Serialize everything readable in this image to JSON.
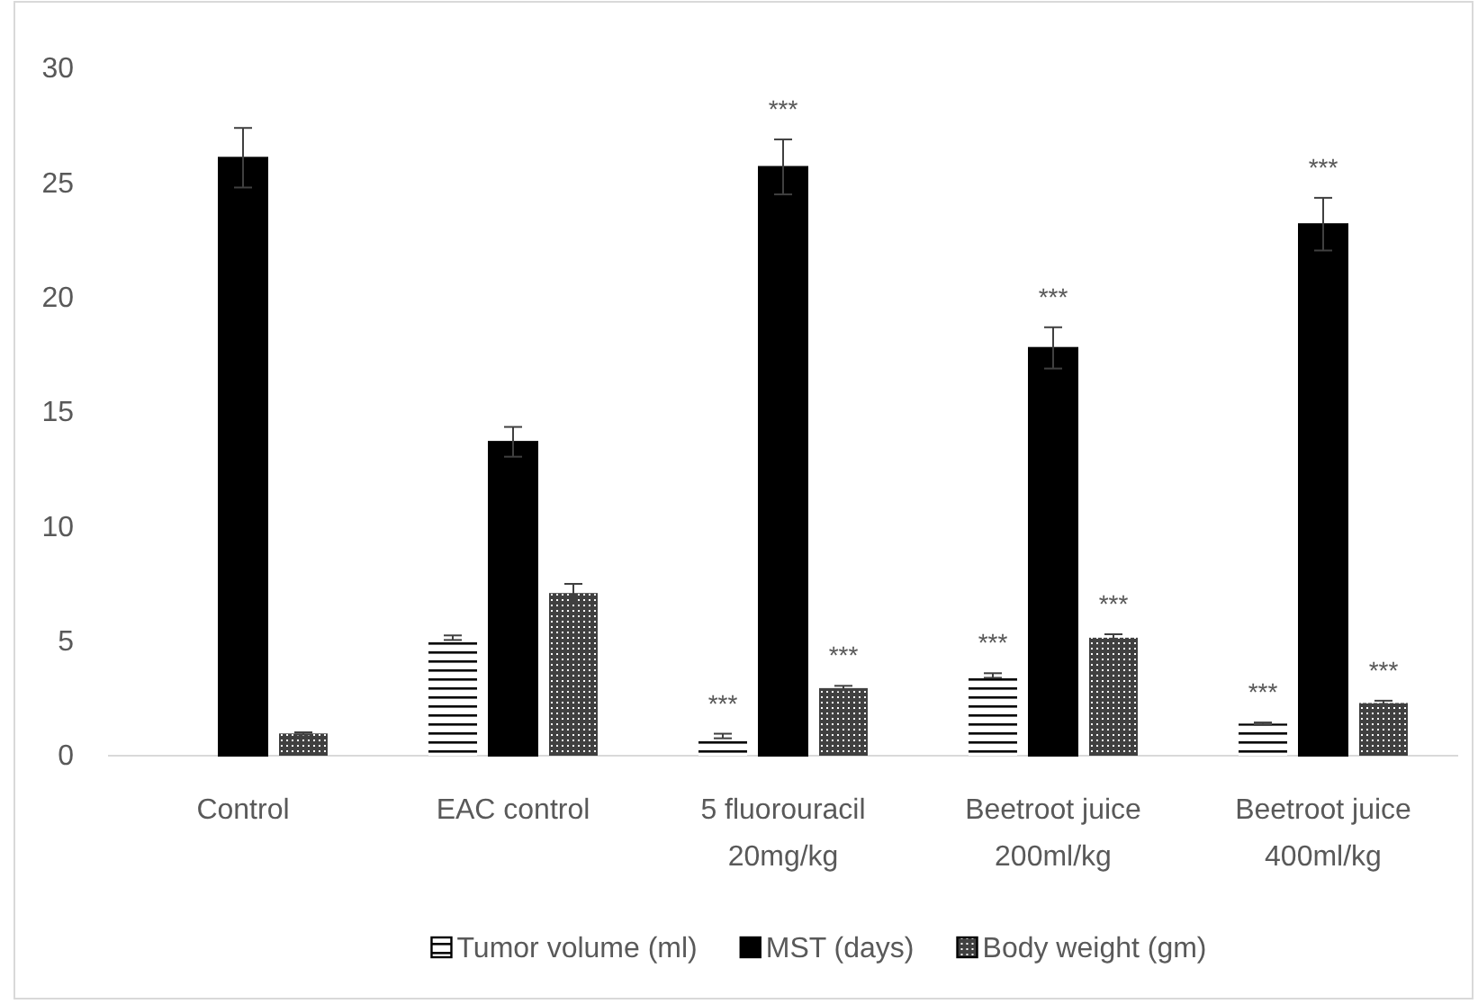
{
  "chart_data": {
    "type": "bar",
    "categories": [
      "Control",
      "EAC control",
      "5 fluorouracil 20mg/kg",
      "Beetroot juice 200ml/kg",
      "Beetroot juice 400ml/kg"
    ],
    "series": [
      {
        "name": "Tumor volume (ml)",
        "color": "#ffffff",
        "values": [
          null,
          5.15,
          0.86,
          3.5,
          1.4
        ],
        "errors": [
          null,
          0.1,
          0.1,
          0.1,
          0.05
        ],
        "value_labels": [
          null,
          null,
          "***",
          "***",
          "***"
        ]
      },
      {
        "name": "MST (days)",
        "color": "#000000",
        "values": [
          26.1,
          13.7,
          25.7,
          17.8,
          23.2
        ],
        "errors": [
          1.3,
          0.65,
          1.2,
          0.9,
          1.15
        ],
        "value_labels": [
          null,
          null,
          "***",
          "***",
          "***"
        ]
      },
      {
        "name": "Body weight (gm)",
        "color": "#404040",
        "values": [
          0.97,
          7.1,
          2.95,
          5.15,
          2.3
        ],
        "errors": [
          0.05,
          0.4,
          0.1,
          0.15,
          0.1
        ],
        "value_labels": [
          null,
          null,
          "***",
          "***",
          "***"
        ]
      }
    ],
    "ylim": [
      0,
      30
    ],
    "yticks": [
      0,
      5,
      10,
      15,
      20,
      25,
      30
    ],
    "grid": false,
    "legend": "bottom"
  }
}
